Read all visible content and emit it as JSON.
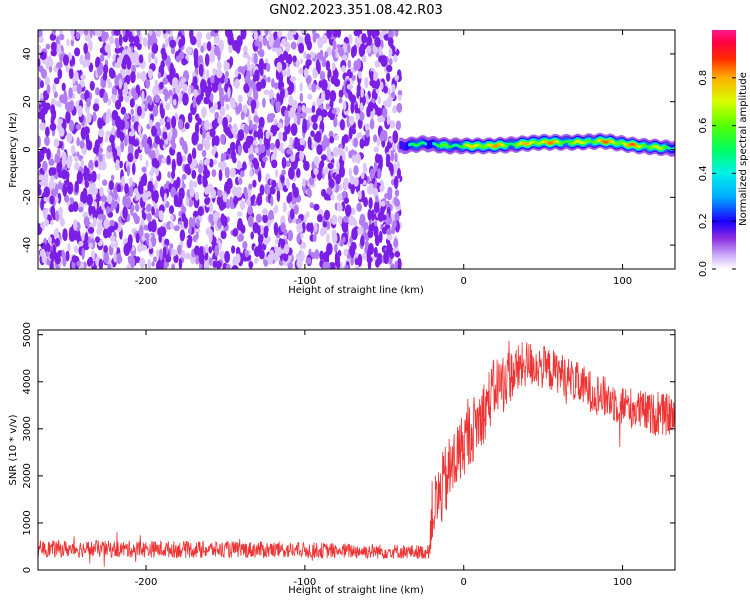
{
  "figure_title": "GN02.2023.351.08.42.R03",
  "chart_data": [
    {
      "type": "heatmap",
      "title": "",
      "xlabel": "Height of straight line (km)",
      "ylabel": "Frequency (Hz)",
      "xlim": [
        -268,
        133
      ],
      "ylim": [
        -50,
        50
      ],
      "xticks": [
        -200,
        -100,
        0,
        100
      ],
      "yticks": [
        -40,
        -20,
        0,
        20,
        40
      ],
      "colorbar": {
        "label": "Normalized spectral amplitude",
        "range": [
          0,
          1
        ],
        "ticks": [
          0.0,
          0.2,
          0.4,
          0.6,
          0.8
        ],
        "colormap": "rainbow (violet to red to magenta)"
      },
      "regions": [
        {
          "x_range": [
            -268,
            -40
          ],
          "description_value": "noise",
          "amplitude_range": [
            0.0,
            0.15
          ]
        },
        {
          "x_range": [
            -40,
            133
          ],
          "signal_frequency_hz": 1,
          "amplitude_range": [
            0.1,
            0.95
          ]
        }
      ],
      "signal_ridge": [
        {
          "x": -38,
          "freq": 1.5,
          "amp": 0.5
        },
        {
          "x": -25,
          "freq": 2.5,
          "amp": 0.55
        },
        {
          "x": -10,
          "freq": 1.5,
          "amp": 0.6
        },
        {
          "x": 5,
          "freq": 1.5,
          "amp": 0.75
        },
        {
          "x": 15,
          "freq": 1.5,
          "amp": 0.9
        },
        {
          "x": 30,
          "freq": 2.0,
          "amp": 0.7
        },
        {
          "x": 48,
          "freq": 3.0,
          "amp": 0.9
        },
        {
          "x": 70,
          "freq": 3.0,
          "amp": 0.7
        },
        {
          "x": 88,
          "freq": 3.5,
          "amp": 0.85
        },
        {
          "x": 110,
          "freq": 1.5,
          "amp": 0.85
        },
        {
          "x": 130,
          "freq": 0.5,
          "amp": 0.6
        }
      ],
      "grid": false
    },
    {
      "type": "line",
      "title": "",
      "xlabel": "Height of straight line (km)",
      "ylabel": "SNR (10 * v/v)",
      "xlim": [
        -268,
        133
      ],
      "ylim": [
        0,
        5100
      ],
      "xticks": [
        -200,
        -100,
        0,
        100
      ],
      "yticks": [
        0,
        1000,
        2000,
        3000,
        4000,
        5000
      ],
      "color": "#ee3333",
      "series": [
        {
          "name": "",
          "envelope": [
            {
              "x": -268,
              "mean": 450,
              "spread": 180
            },
            {
              "x": -120,
              "mean": 430,
              "spread": 180
            },
            {
              "x": -22,
              "mean": 380,
              "spread": 150
            },
            {
              "x": -20,
              "mean": 1200,
              "spread": 700
            },
            {
              "x": -10,
              "mean": 2000,
              "spread": 800
            },
            {
              "x": 0,
              "mean": 2700,
              "spread": 700
            },
            {
              "x": 10,
              "mean": 3200,
              "spread": 700
            },
            {
              "x": 20,
              "mean": 3900,
              "spread": 650
            },
            {
              "x": 40,
              "mean": 4400,
              "spread": 500
            },
            {
              "x": 60,
              "mean": 4200,
              "spread": 450
            },
            {
              "x": 80,
              "mean": 3800,
              "spread": 450
            },
            {
              "x": 100,
              "mean": 3500,
              "spread": 450
            },
            {
              "x": 120,
              "mean": 3300,
              "spread": 450
            },
            {
              "x": 133,
              "mean": 3300,
              "spread": 450
            }
          ]
        }
      ],
      "grid": false
    }
  ]
}
